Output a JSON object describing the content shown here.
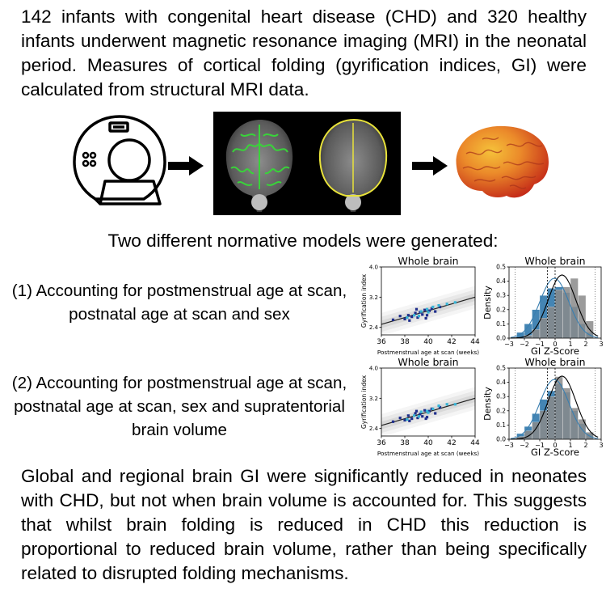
{
  "intro_text": "142 infants with congenital heart disease (CHD) and 320 healthy infants underwent magnetic resonance imaging (MRI) in the neonatal period. Measures of cortical folding (gyrification indices, GI) were calculated from structural MRI data.",
  "models_heading": "Two different normative models were generated:",
  "model_1_text": "(1) Accounting for postmenstrual age at scan, postnatal age at scan and sex",
  "model_2_text": "(2) Accounting for postmenstrual age at scan, postnatal age at scan, sex and supratentorial brain volume",
  "conclusion_text": "Global and regional brain GI were significantly reduced in neonates with CHD, but not when brain volume is accounted for. This suggests that whilst brain folding is reduced in CHD this reduction is proportional to reduced brain volume, rather than being specifically related to disrupted folding mechanisms.",
  "icons": [
    "mri-scanner-icon",
    "arrow-right-icon",
    "brain-3d-icon"
  ],
  "colors": {
    "points_dark": "#1f2e8c",
    "points_light": "#37b4d6",
    "hist_blue": "#3a7fb0",
    "hist_grey": "#8a8a8a",
    "brain_red": "#d8351e",
    "brain_yellow": "#f5c23a",
    "overlay_green": "#39d33a",
    "overlay_yellow": "#e8e23a"
  },
  "chart_data": [
    {
      "type": "scatter",
      "title": "Whole brain",
      "xlabel": "Postmenstrual age at scan (weeks)",
      "ylabel": "Gyrification index",
      "xlim": [
        36,
        44
      ],
      "ylim": [
        2.2,
        4.0
      ],
      "x_ticks": [
        "36",
        "38",
        "40",
        "42",
        "44"
      ],
      "y_ticks": [
        "2.4",
        "3.2",
        "4.0"
      ],
      "fit_line": [
        [
          36,
          2.48
        ],
        [
          44,
          3.2
        ]
      ],
      "series": [
        {
          "points": [
            [
              37.0,
              2.6
            ],
            [
              37.6,
              2.7
            ],
            [
              38.0,
              2.62
            ],
            [
              38.3,
              2.72
            ],
            [
              38.6,
              2.68
            ],
            [
              38.9,
              2.78
            ],
            [
              39.1,
              2.66
            ],
            [
              39.3,
              2.8
            ],
            [
              39.5,
              2.74
            ],
            [
              39.7,
              2.86
            ],
            [
              39.9,
              2.72
            ],
            [
              40.1,
              2.84
            ],
            [
              40.3,
              2.9
            ],
            [
              40.6,
              2.82
            ],
            [
              41.0,
              2.94
            ],
            [
              38.4,
              2.58
            ],
            [
              39.0,
              2.88
            ],
            [
              39.8,
              2.64
            ]
          ]
        },
        {
          "points": [
            [
              38.2,
              2.66
            ],
            [
              38.8,
              2.72
            ],
            [
              39.4,
              2.82
            ],
            [
              39.9,
              2.88
            ],
            [
              40.4,
              2.94
            ],
            [
              40.9,
              2.98
            ],
            [
              41.6,
              3.02
            ],
            [
              42.3,
              3.06
            ],
            [
              39.2,
              2.7
            ],
            [
              40.0,
              2.8
            ]
          ]
        }
      ]
    },
    {
      "type": "bar",
      "title": "Whole brain",
      "xlabel": "GI Z-Score",
      "ylabel": "Density",
      "xlim": [
        -3,
        3
      ],
      "ylim": [
        0,
        0.5
      ],
      "x_ticks": [
        "−3",
        "−2",
        "−1",
        "0",
        "1",
        "2",
        "3"
      ],
      "y_ticks": [
        "0.0",
        "0.1",
        "0.2",
        "0.3",
        "0.4",
        "0.5"
      ],
      "bin_edges": [
        -2.5,
        -2.0,
        -1.5,
        -1.0,
        -0.5,
        0.0,
        0.5,
        1.0,
        1.5,
        2.0,
        2.5
      ],
      "series": [
        {
          "values": [
            0.04,
            0.1,
            0.2,
            0.3,
            0.35,
            0.36,
            0.32,
            0.22,
            0.1,
            0.04
          ]
        },
        {
          "values": [
            0.0,
            0.02,
            0.06,
            0.14,
            0.22,
            0.34,
            0.36,
            0.42,
            0.3,
            0.12
          ]
        }
      ]
    },
    {
      "type": "scatter",
      "title": "Whole brain",
      "xlabel": "Postmenstrual age at scan (weeks)",
      "ylabel": "Gyrification index",
      "xlim": [
        36,
        44
      ],
      "ylim": [
        2.2,
        4.0
      ],
      "x_ticks": [
        "36",
        "38",
        "40",
        "42",
        "44"
      ],
      "y_ticks": [
        "2.4",
        "3.2",
        "4.0"
      ],
      "fit_line": [
        [
          36,
          2.48
        ],
        [
          44,
          3.2
        ]
      ],
      "series": [
        {
          "points": [
            [
              37.0,
              2.58
            ],
            [
              37.6,
              2.68
            ],
            [
              38.0,
              2.62
            ],
            [
              38.3,
              2.74
            ],
            [
              38.6,
              2.66
            ],
            [
              38.9,
              2.8
            ],
            [
              39.1,
              2.68
            ],
            [
              39.3,
              2.78
            ],
            [
              39.5,
              2.72
            ],
            [
              39.7,
              2.88
            ],
            [
              39.9,
              2.7
            ],
            [
              40.1,
              2.86
            ],
            [
              40.3,
              2.92
            ],
            [
              40.6,
              2.8
            ],
            [
              41.0,
              2.96
            ],
            [
              38.4,
              2.6
            ],
            [
              39.0,
              2.86
            ],
            [
              39.8,
              2.66
            ]
          ]
        },
        {
          "points": [
            [
              38.2,
              2.64
            ],
            [
              38.8,
              2.74
            ],
            [
              39.4,
              2.84
            ],
            [
              39.9,
              2.86
            ],
            [
              40.4,
              2.92
            ],
            [
              40.9,
              3.0
            ],
            [
              41.6,
              3.04
            ],
            [
              42.3,
              3.04
            ],
            [
              39.2,
              2.72
            ],
            [
              40.0,
              2.82
            ]
          ]
        }
      ]
    },
    {
      "type": "bar",
      "title": "Whole brain",
      "xlabel": "GI Z-Score",
      "ylabel": "Density",
      "xlim": [
        -3,
        3
      ],
      "ylim": [
        0,
        0.5
      ],
      "x_ticks": [
        "−3",
        "−2",
        "−1",
        "0",
        "1",
        "2",
        "3"
      ],
      "y_ticks": [
        "0.0",
        "0.1",
        "0.2",
        "0.3",
        "0.4",
        "0.5"
      ],
      "bin_edges": [
        -2.5,
        -2.0,
        -1.5,
        -1.0,
        -0.5,
        0.0,
        0.5,
        1.0,
        1.5,
        2.0,
        2.5
      ],
      "series": [
        {
          "values": [
            0.04,
            0.09,
            0.18,
            0.28,
            0.34,
            0.39,
            0.33,
            0.2,
            0.11,
            0.04
          ]
        },
        {
          "values": [
            0.02,
            0.06,
            0.12,
            0.2,
            0.3,
            0.44,
            0.36,
            0.22,
            0.14,
            0.05
          ]
        }
      ]
    }
  ]
}
